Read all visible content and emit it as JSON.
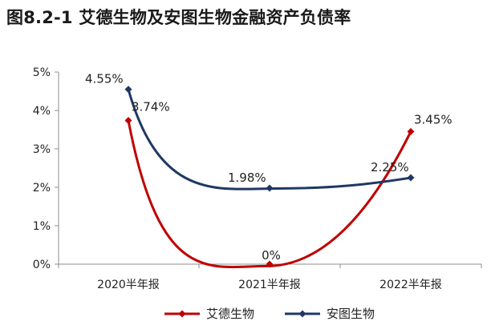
{
  "title": "图8.2-1 艾德生物及安图生物金融资产负债率",
  "chart_data": {
    "type": "line",
    "title": "图8.2-1 艾德生物及安图生物金融资产负债率",
    "categories": [
      "2020半年报",
      "2021半年报",
      "2022半年报"
    ],
    "y_ticks": [
      "0%",
      "1%",
      "2%",
      "3%",
      "4%",
      "5%"
    ],
    "ylim": [
      0,
      5
    ],
    "xlabel": "",
    "ylabel": "",
    "legend_position": "bottom",
    "series": [
      {
        "name": "艾德生物",
        "color": "#c00000",
        "values": [
          3.74,
          0,
          3.45
        ],
        "labels": [
          "3.74%",
          "0%",
          "3.45%"
        ],
        "smooth_min": {
          "x": 0.98,
          "value": -0.05
        }
      },
      {
        "name": "安图生物",
        "color": "#1f3864",
        "values": [
          4.55,
          1.98,
          2.25
        ],
        "labels": [
          "4.55%",
          "1.98%",
          "2.25%"
        ],
        "smooth_min": {
          "x": 1.05,
          "value": 1.97
        }
      }
    ]
  }
}
